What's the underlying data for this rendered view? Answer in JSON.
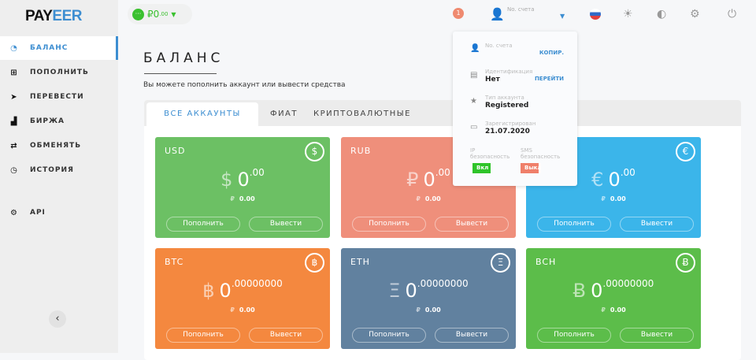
{
  "logo": {
    "text_a": "PAY",
    "text_b": "EER"
  },
  "wallet": {
    "symbol": "₽",
    "amount": "0",
    "decimals": ".00"
  },
  "sidebar": {
    "items": [
      {
        "label": "БАЛАНС",
        "icon": "gauge-icon",
        "glyph": "◔"
      },
      {
        "label": "ПОПОЛНИТЬ",
        "icon": "plus-square-icon",
        "glyph": "⊞"
      },
      {
        "label": "ПЕРЕВЕСТИ",
        "icon": "send-icon",
        "glyph": "➤"
      },
      {
        "label": "БИРЖА",
        "icon": "chart-icon",
        "glyph": "📈"
      },
      {
        "label": "ОБМЕНЯТЬ",
        "icon": "exchange-icon",
        "glyph": "⇄"
      },
      {
        "label": "ИСТОРИЯ",
        "icon": "clock-icon",
        "glyph": "◷"
      },
      {
        "label": "API",
        "icon": "gears-icon",
        "glyph": "⚙"
      }
    ],
    "collapse": "‹"
  },
  "header": {
    "notifications": "1",
    "account_label": "No. счета"
  },
  "page": {
    "title": "БАЛАНС",
    "subtitle": "Вы можете пополнить аккаунт или вывести средства"
  },
  "tabs": [
    {
      "label": "ВСЕ АККАУНТЫ"
    },
    {
      "label": "ФИАТ"
    },
    {
      "label": "КРИПТОВАЛЮТНЫЕ"
    }
  ],
  "cards": [
    {
      "currency": "USD",
      "symbol": "$",
      "amount": "0",
      "decimals": ".00",
      "rub": "0.00",
      "color": "#6cc064"
    },
    {
      "currency": "RUB",
      "symbol": "₽",
      "amount": "0",
      "decimals": ".00",
      "rub": "0.00",
      "color": "#ef8f7b"
    },
    {
      "currency": "EUR",
      "symbol": "€",
      "amount": "0",
      "decimals": ".00",
      "rub": "0.00",
      "color": "#3bb5ea"
    },
    {
      "currency": "BTC",
      "symbol": "฿",
      "amount": "0",
      "decimals": ".00000000",
      "rub": "0.00",
      "color": "#f4883f"
    },
    {
      "currency": "ETH",
      "symbol": "Ξ",
      "amount": "0",
      "decimals": ".00000000",
      "rub": "0.00",
      "color": "#61819f"
    },
    {
      "currency": "BCH",
      "symbol": "Ƀ",
      "amount": "0",
      "decimals": ".00000000",
      "rub": "0.00",
      "color": "#5cbd4a"
    }
  ],
  "card_buttons": {
    "deposit": "Пополнить",
    "withdraw": "Вывести",
    "rub_symbol": "₽"
  },
  "dropdown": {
    "account_label": "No. счета",
    "copy": "КОПИР.",
    "id_label": "Идентификация",
    "id_value": "Нет",
    "id_link": "ПЕРЕЙТИ",
    "type_label": "Тип аккаунта",
    "type_value": "Registered",
    "reg_label": "Зарегистрирован",
    "reg_value": "21.07.2020",
    "ip_label": "IP безопасность",
    "ip_state": "Вкл",
    "sms_label": "SMS безопасность",
    "sms_state": "Выкл"
  }
}
